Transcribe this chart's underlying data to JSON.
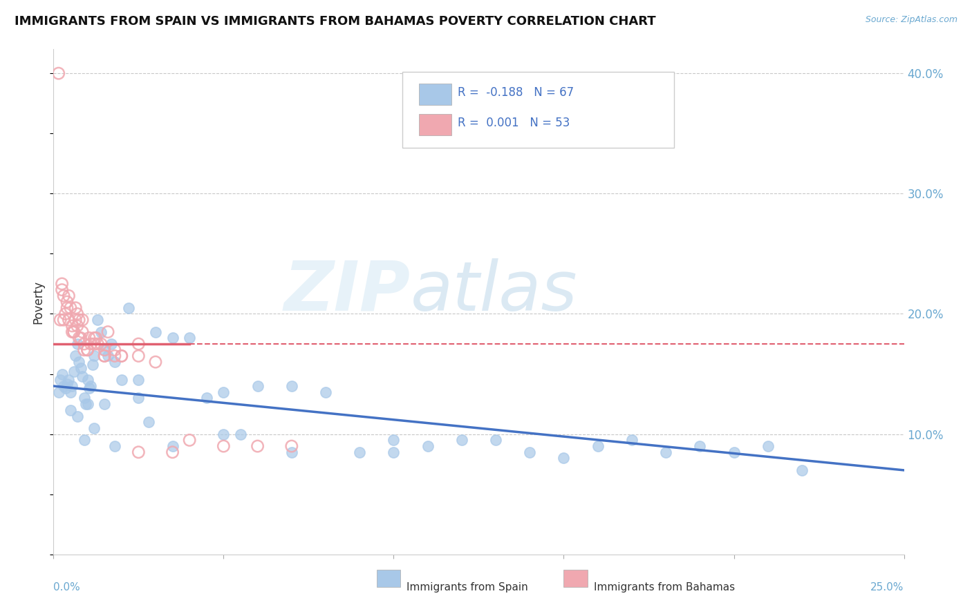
{
  "title": "IMMIGRANTS FROM SPAIN VS IMMIGRANTS FROM BAHAMAS POVERTY CORRELATION CHART",
  "source": "Source: ZipAtlas.com",
  "ylabel": "Poverty",
  "xlim": [
    0.0,
    25.0
  ],
  "ylim": [
    0.0,
    42.0
  ],
  "yticks_right": [
    10.0,
    20.0,
    30.0,
    40.0
  ],
  "ytick_labels_right": [
    "10.0%",
    "20.0%",
    "30.0%",
    "40.0%"
  ],
  "legend_r_spain": "-0.188",
  "legend_n_spain": "67",
  "legend_r_bahamas": "0.001",
  "legend_n_bahamas": "53",
  "color_spain": "#a8c8e8",
  "color_bahamas": "#f0a8b0",
  "color_spain_line": "#4472C4",
  "color_bahamas_line": "#E06070",
  "watermark_zip": "ZIP",
  "watermark_atlas": "atlas",
  "background_color": "#ffffff",
  "grid_color": "#c8c8c8",
  "spain_trend_x0": 0.0,
  "spain_trend_y0": 14.0,
  "spain_trend_x1": 25.0,
  "spain_trend_y1": 7.0,
  "bahamas_trend_solid_x0": 0.0,
  "bahamas_trend_solid_x1": 4.0,
  "bahamas_trend_dashed_x0": 4.0,
  "bahamas_trend_dashed_x1": 25.0,
  "bahamas_trend_y": 17.5,
  "spain_x": [
    0.15,
    0.2,
    0.25,
    0.3,
    0.35,
    0.4,
    0.45,
    0.5,
    0.55,
    0.6,
    0.65,
    0.7,
    0.75,
    0.8,
    0.85,
    0.9,
    0.95,
    1.0,
    1.05,
    1.1,
    1.15,
    1.2,
    1.3,
    1.4,
    1.5,
    1.6,
    1.7,
    1.8,
    2.0,
    2.2,
    2.5,
    3.0,
    3.5,
    4.0,
    4.5,
    5.0,
    5.5,
    6.0,
    7.0,
    8.0,
    9.0,
    10.0,
    11.0,
    12.0,
    13.0,
    14.0,
    15.0,
    16.0,
    17.0,
    18.0,
    19.0,
    20.0,
    21.0,
    22.0,
    2.5,
    1.0,
    1.5,
    0.5,
    0.7,
    0.9,
    1.2,
    1.8,
    2.8,
    3.5,
    5.0,
    7.0,
    10.0
  ],
  "spain_y": [
    13.5,
    14.5,
    15.0,
    14.0,
    13.8,
    14.2,
    14.5,
    13.5,
    14.0,
    15.2,
    16.5,
    17.5,
    16.0,
    15.5,
    14.8,
    13.0,
    12.5,
    14.5,
    13.8,
    14.0,
    15.8,
    16.5,
    19.5,
    18.5,
    17.0,
    16.5,
    17.5,
    16.0,
    14.5,
    20.5,
    14.5,
    18.5,
    18.0,
    18.0,
    13.0,
    13.5,
    10.0,
    14.0,
    14.0,
    13.5,
    8.5,
    9.5,
    9.0,
    9.5,
    9.5,
    8.5,
    8.0,
    9.0,
    9.5,
    8.5,
    9.0,
    8.5,
    9.0,
    7.0,
    13.0,
    12.5,
    12.5,
    12.0,
    11.5,
    9.5,
    10.5,
    9.0,
    11.0,
    9.0,
    10.0,
    8.5,
    8.5
  ],
  "bahamas_x": [
    0.15,
    0.2,
    0.25,
    0.3,
    0.35,
    0.4,
    0.45,
    0.5,
    0.55,
    0.6,
    0.65,
    0.7,
    0.75,
    0.8,
    0.85,
    0.9,
    1.0,
    1.1,
    1.2,
    1.3,
    1.4,
    1.5,
    1.6,
    1.8,
    2.0,
    2.5,
    3.0,
    0.25,
    0.45,
    0.65,
    0.85,
    1.05,
    1.25,
    1.5,
    2.0,
    2.5,
    3.5,
    5.0,
    7.0,
    0.3,
    0.6,
    0.9,
    1.2,
    1.8,
    2.5,
    4.0,
    6.0,
    0.4,
    0.7,
    1.0,
    1.5,
    0.55,
    0.75
  ],
  "bahamas_y": [
    40.0,
    19.5,
    22.0,
    21.5,
    20.0,
    21.0,
    19.5,
    20.5,
    19.0,
    18.5,
    19.5,
    20.0,
    19.5,
    18.0,
    18.5,
    17.5,
    17.0,
    17.5,
    18.0,
    17.5,
    17.5,
    17.0,
    18.5,
    16.5,
    16.5,
    17.5,
    16.0,
    22.5,
    21.5,
    20.5,
    19.5,
    18.0,
    18.0,
    16.5,
    16.5,
    8.5,
    8.5,
    9.0,
    9.0,
    19.5,
    18.5,
    17.0,
    17.5,
    17.0,
    16.5,
    9.5,
    9.0,
    20.5,
    19.0,
    17.0,
    16.5,
    18.5,
    18.0
  ]
}
